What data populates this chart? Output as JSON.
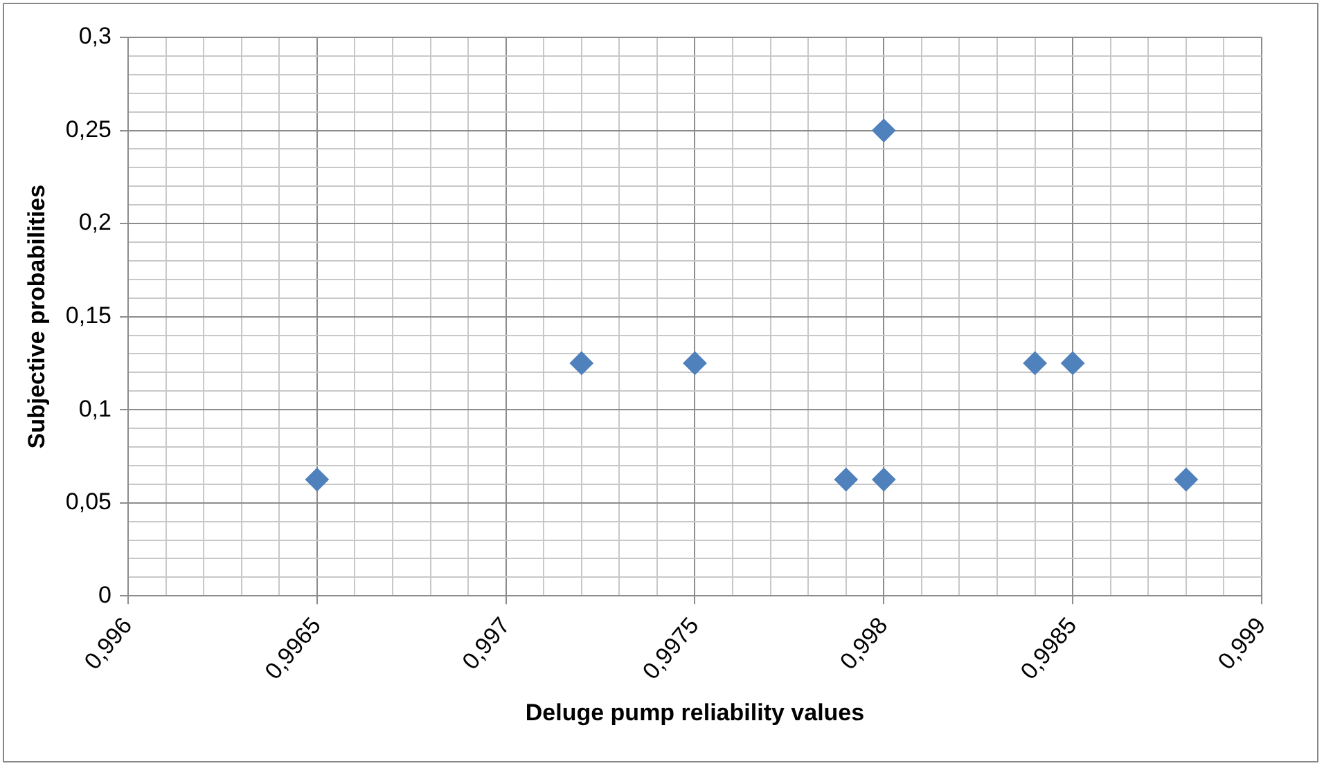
{
  "chart_data": {
    "type": "scatter",
    "xlabel": "Deluge pump reliability values",
    "ylabel": "Subjective probabilities",
    "x": [
      0.9965,
      0.9972,
      0.9975,
      0.9979,
      0.998,
      0.998,
      0.9984,
      0.9985,
      0.9988
    ],
    "values": [
      0.0625,
      0.125,
      0.125,
      0.0625,
      0.0625,
      0.25,
      0.125,
      0.125,
      0.0625
    ],
    "color": "#4f81bd",
    "marker": "diamond",
    "grid": true,
    "legend": false,
    "xlim": [
      0.996,
      0.999
    ],
    "ylim": [
      0,
      0.3
    ],
    "xticks": [
      {
        "value": 0.996,
        "label": "0,996"
      },
      {
        "value": 0.9961,
        "label": null
      },
      {
        "value": 0.9962,
        "label": null
      },
      {
        "value": 0.9963,
        "label": null
      },
      {
        "value": 0.9964,
        "label": null
      },
      {
        "value": 0.9965,
        "label": "0,9965"
      },
      {
        "value": 0.9966,
        "label": null
      },
      {
        "value": 0.9967,
        "label": null
      },
      {
        "value": 0.9968,
        "label": null
      },
      {
        "value": 0.9969,
        "label": null
      },
      {
        "value": 0.997,
        "label": "0,997"
      },
      {
        "value": 0.9971,
        "label": null
      },
      {
        "value": 0.9972,
        "label": null
      },
      {
        "value": 0.9973,
        "label": null
      },
      {
        "value": 0.9974,
        "label": null
      },
      {
        "value": 0.9975,
        "label": "0,9975"
      },
      {
        "value": 0.9976,
        "label": null
      },
      {
        "value": 0.9977,
        "label": null
      },
      {
        "value": 0.9978,
        "label": null
      },
      {
        "value": 0.9979,
        "label": null
      },
      {
        "value": 0.998,
        "label": "0,998"
      },
      {
        "value": 0.9981,
        "label": null
      },
      {
        "value": 0.9982,
        "label": null
      },
      {
        "value": 0.9983,
        "label": null
      },
      {
        "value": 0.9984,
        "label": null
      },
      {
        "value": 0.9985,
        "label": "0,9985"
      },
      {
        "value": 0.9986,
        "label": null
      },
      {
        "value": 0.9987,
        "label": null
      },
      {
        "value": 0.9988,
        "label": null
      },
      {
        "value": 0.9989,
        "label": null
      },
      {
        "value": 0.999,
        "label": "0,999"
      }
    ],
    "yticks": [
      0,
      {
        "value": 0.01,
        "label": null
      },
      {
        "value": 0.02,
        "label": null
      },
      {
        "value": 0.03,
        "label": null
      },
      {
        "value": 0.04,
        "label": null
      },
      {
        "value": 0.05,
        "label": "0,05"
      },
      {
        "value": 0.06,
        "label": null
      },
      {
        "value": 0.07,
        "label": null
      },
      {
        "value": 0.08,
        "label": null
      },
      {
        "value": 0.09,
        "label": null
      },
      {
        "value": 0.1,
        "label": "0,1"
      },
      {
        "value": 0.11,
        "label": null
      },
      {
        "value": 0.12,
        "label": null
      },
      {
        "value": 0.13,
        "label": null
      },
      {
        "value": 0.14,
        "label": null
      },
      {
        "value": 0.15,
        "label": "0,15"
      },
      {
        "value": 0.16,
        "label": null
      },
      {
        "value": 0.17,
        "label": null
      },
      {
        "value": 0.18,
        "label": null
      },
      {
        "value": 0.19,
        "label": null
      },
      {
        "value": 0.2,
        "label": "0,2"
      },
      {
        "value": 0.21,
        "label": null
      },
      {
        "value": 0.22,
        "label": null
      },
      {
        "value": 0.23,
        "label": null
      },
      {
        "value": 0.24,
        "label": null
      },
      {
        "value": 0.25,
        "label": "0,25"
      },
      {
        "value": 0.26,
        "label": null
      },
      {
        "value": 0.27,
        "label": null
      },
      {
        "value": 0.28,
        "label": null
      },
      {
        "value": 0.29,
        "label": null
      },
      {
        "value": 0.3,
        "label": "0,3"
      }
    ]
  }
}
